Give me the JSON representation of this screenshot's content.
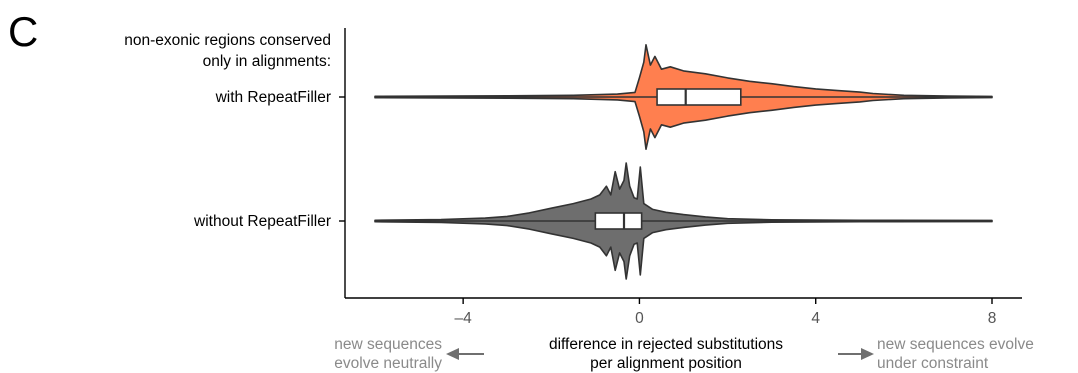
{
  "panel_label": "C",
  "chart_data": {
    "type": "violin",
    "orientation": "horizontal",
    "group_header": [
      "non-exonic regions conserved",
      "only in alignments:"
    ],
    "categories": [
      "with RepeatFiller",
      "without RepeatFiller"
    ],
    "xlabel": [
      "difference in rejected substitutions",
      "per alignment position"
    ],
    "xlim": [
      -6,
      8
    ],
    "xticks": [
      -4,
      0,
      4,
      8
    ],
    "xtick_labels": [
      "–4",
      "0",
      "4",
      "8"
    ],
    "grid": false,
    "legend": "none",
    "series": [
      {
        "category": "with RepeatFiller",
        "color": "#FF7F4F",
        "whisker_range": [
          -6,
          8
        ],
        "box": {
          "q1": 0.4,
          "median": 1.05,
          "q3": 2.3
        },
        "density_profile": [
          [
            -6,
            0.012
          ],
          [
            -3,
            0.02
          ],
          [
            -1.5,
            0.03
          ],
          [
            -0.5,
            0.05
          ],
          [
            -0.1,
            0.08
          ],
          [
            0.0,
            0.33
          ],
          [
            0.1,
            0.6
          ],
          [
            0.15,
            0.9
          ],
          [
            0.25,
            0.55
          ],
          [
            0.35,
            0.7
          ],
          [
            0.5,
            0.48
          ],
          [
            0.7,
            0.52
          ],
          [
            1.0,
            0.45
          ],
          [
            1.5,
            0.4
          ],
          [
            2.0,
            0.33
          ],
          [
            2.5,
            0.27
          ],
          [
            3.0,
            0.23
          ],
          [
            3.5,
            0.18
          ],
          [
            4.0,
            0.14
          ],
          [
            4.5,
            0.11
          ],
          [
            5.0,
            0.085
          ],
          [
            5.3,
            0.06
          ],
          [
            6.0,
            0.03
          ],
          [
            7.0,
            0.015
          ],
          [
            8,
            0.01
          ]
        ]
      },
      {
        "category": "without RepeatFiller",
        "color": "#6E6E6E",
        "whisker_range": [
          -6,
          8
        ],
        "box": {
          "q1": -1.0,
          "median": -0.35,
          "q3": 0.05
        },
        "density_profile": [
          [
            -6,
            0.012
          ],
          [
            -4.5,
            0.025
          ],
          [
            -3.5,
            0.05
          ],
          [
            -3.0,
            0.08
          ],
          [
            -2.5,
            0.14
          ],
          [
            -2.0,
            0.22
          ],
          [
            -1.5,
            0.3
          ],
          [
            -1.1,
            0.38
          ],
          [
            -0.9,
            0.45
          ],
          [
            -0.75,
            0.6
          ],
          [
            -0.65,
            0.45
          ],
          [
            -0.55,
            0.85
          ],
          [
            -0.45,
            0.55
          ],
          [
            -0.35,
            0.7
          ],
          [
            -0.3,
            1.0
          ],
          [
            -0.22,
            0.6
          ],
          [
            -0.12,
            0.4
          ],
          [
            -0.05,
            0.38
          ],
          [
            0.02,
            0.93
          ],
          [
            0.1,
            0.3
          ],
          [
            0.3,
            0.2
          ],
          [
            0.6,
            0.15
          ],
          [
            1.0,
            0.11
          ],
          [
            1.5,
            0.07
          ],
          [
            2.0,
            0.04
          ],
          [
            3.0,
            0.02
          ],
          [
            5.0,
            0.012
          ],
          [
            8,
            0.01
          ]
        ]
      }
    ],
    "annotations": {
      "left": [
        "new sequences",
        "evolve neutrally"
      ],
      "right": [
        "new sequences evolve",
        "under constraint"
      ]
    }
  }
}
